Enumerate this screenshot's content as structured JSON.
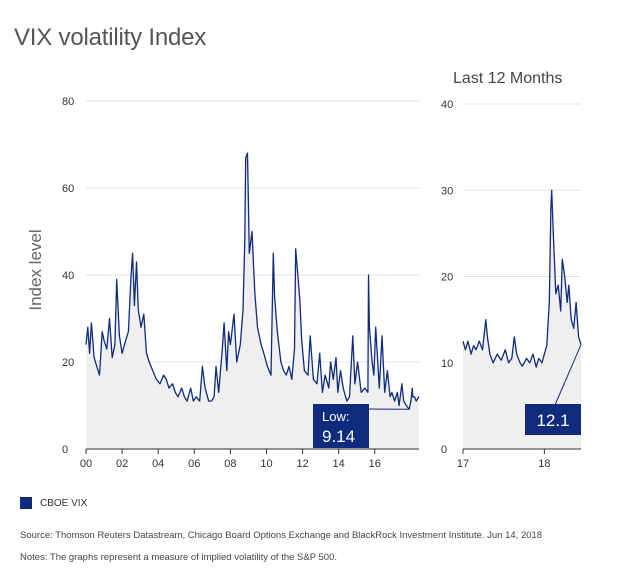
{
  "title": "VIX volatility Index",
  "subtitle": "Last 12 Months",
  "ylabel": "Index level",
  "colors": {
    "series": "#0f2b7d",
    "fill": "#efefef",
    "grid": "#e0e0e0",
    "axis": "#333333"
  },
  "legend": {
    "label": "CBOE VIX"
  },
  "source": "Source: Thomson Reuters Datastream, Chicago Board Options Exchange and BlackRock Investment Institute. Jun 14, 2018",
  "notes": "Notes: The graphs represent a measure of implied volatility of the S&P 500.",
  "chart_data": [
    {
      "type": "area",
      "series_name": "CBOE VIX",
      "xlim": [
        2000,
        2018.45
      ],
      "ylim": [
        0,
        80
      ],
      "yticks": [
        0,
        20,
        40,
        60,
        80
      ],
      "xticks": [
        {
          "value": 2000,
          "label": "00"
        },
        {
          "value": 2002,
          "label": "02"
        },
        {
          "value": 2004,
          "label": "04"
        },
        {
          "value": 2006,
          "label": "06"
        },
        {
          "value": 2008,
          "label": "08"
        },
        {
          "value": 2010,
          "label": "10"
        },
        {
          "value": 2012,
          "label": "12"
        },
        {
          "value": 2014,
          "label": "14"
        },
        {
          "value": 2016,
          "label": "16"
        }
      ],
      "points": [
        [
          2000.0,
          24
        ],
        [
          2000.1,
          28
        ],
        [
          2000.2,
          22
        ],
        [
          2000.3,
          29
        ],
        [
          2000.45,
          21
        ],
        [
          2000.6,
          19
        ],
        [
          2000.75,
          17
        ],
        [
          2000.9,
          27
        ],
        [
          2001.0,
          25
        ],
        [
          2001.15,
          23
        ],
        [
          2001.3,
          30
        ],
        [
          2001.45,
          21
        ],
        [
          2001.6,
          24
        ],
        [
          2001.7,
          39
        ],
        [
          2001.85,
          26
        ],
        [
          2002.0,
          22
        ],
        [
          2002.2,
          25
        ],
        [
          2002.35,
          27
        ],
        [
          2002.5,
          40
        ],
        [
          2002.58,
          45
        ],
        [
          2002.68,
          33
        ],
        [
          2002.8,
          43
        ],
        [
          2002.9,
          32
        ],
        [
          2003.05,
          28
        ],
        [
          2003.2,
          31
        ],
        [
          2003.35,
          22
        ],
        [
          2003.5,
          20
        ],
        [
          2003.7,
          18
        ],
        [
          2003.9,
          16
        ],
        [
          2004.1,
          15
        ],
        [
          2004.3,
          17
        ],
        [
          2004.45,
          16
        ],
        [
          2004.6,
          14
        ],
        [
          2004.8,
          15
        ],
        [
          2004.95,
          13
        ],
        [
          2005.1,
          12
        ],
        [
          2005.3,
          14
        ],
        [
          2005.45,
          12
        ],
        [
          2005.6,
          11
        ],
        [
          2005.8,
          14
        ],
        [
          2005.95,
          11
        ],
        [
          2006.1,
          12
        ],
        [
          2006.3,
          11
        ],
        [
          2006.45,
          19
        ],
        [
          2006.6,
          14
        ],
        [
          2006.8,
          11
        ],
        [
          2006.95,
          11
        ],
        [
          2007.1,
          12
        ],
        [
          2007.2,
          19
        ],
        [
          2007.35,
          13
        ],
        [
          2007.55,
          23
        ],
        [
          2007.65,
          29
        ],
        [
          2007.8,
          18
        ],
        [
          2007.9,
          27
        ],
        [
          2008.0,
          24
        ],
        [
          2008.2,
          31
        ],
        [
          2008.35,
          20
        ],
        [
          2008.55,
          24
        ],
        [
          2008.7,
          32
        ],
        [
          2008.8,
          48
        ],
        [
          2008.85,
          67
        ],
        [
          2008.95,
          68
        ],
        [
          2009.05,
          45
        ],
        [
          2009.2,
          50
        ],
        [
          2009.35,
          36
        ],
        [
          2009.5,
          28
        ],
        [
          2009.7,
          24
        ],
        [
          2009.85,
          22
        ],
        [
          2010.05,
          19
        ],
        [
          2010.25,
          17
        ],
        [
          2010.38,
          45
        ],
        [
          2010.45,
          35
        ],
        [
          2010.6,
          27
        ],
        [
          2010.8,
          20
        ],
        [
          2010.95,
          18
        ],
        [
          2011.1,
          17
        ],
        [
          2011.25,
          19
        ],
        [
          2011.4,
          16
        ],
        [
          2011.55,
          23
        ],
        [
          2011.62,
          46
        ],
        [
          2011.72,
          41
        ],
        [
          2011.85,
          34
        ],
        [
          2011.95,
          25
        ],
        [
          2012.1,
          18
        ],
        [
          2012.3,
          17
        ],
        [
          2012.42,
          26
        ],
        [
          2012.6,
          16
        ],
        [
          2012.8,
          15
        ],
        [
          2012.95,
          22
        ],
        [
          2013.1,
          13
        ],
        [
          2013.25,
          17
        ],
        [
          2013.45,
          14
        ],
        [
          2013.55,
          20
        ],
        [
          2013.7,
          16
        ],
        [
          2013.85,
          21
        ],
        [
          2013.95,
          13
        ],
        [
          2014.1,
          18
        ],
        [
          2014.25,
          14
        ],
        [
          2014.45,
          11
        ],
        [
          2014.6,
          12
        ],
        [
          2014.78,
          26
        ],
        [
          2014.9,
          15
        ],
        [
          2015.05,
          20
        ],
        [
          2015.25,
          13
        ],
        [
          2015.45,
          14
        ],
        [
          2015.62,
          13
        ],
        [
          2015.65,
          40
        ],
        [
          2015.7,
          28
        ],
        [
          2015.85,
          20
        ],
        [
          2015.95,
          17
        ],
        [
          2016.05,
          28
        ],
        [
          2016.25,
          14
        ],
        [
          2016.4,
          26
        ],
        [
          2016.55,
          13
        ],
        [
          2016.7,
          18
        ],
        [
          2016.85,
          12
        ],
        [
          2016.95,
          13
        ],
        [
          2017.1,
          11
        ],
        [
          2017.25,
          13
        ],
        [
          2017.35,
          10
        ],
        [
          2017.5,
          15
        ],
        [
          2017.6,
          11
        ],
        [
          2017.75,
          10
        ],
        [
          2017.9,
          9.14
        ],
        [
          2018.0,
          11
        ],
        [
          2018.08,
          14
        ],
        [
          2018.1,
          12
        ],
        [
          2018.2,
          12
        ],
        [
          2018.3,
          11
        ],
        [
          2018.45,
          12.1
        ]
      ],
      "annotation": {
        "label1": "Low:",
        "label2": "9.14",
        "x": 2017.9,
        "y": 9.14
      }
    },
    {
      "type": "area",
      "title": "Last 12 Months",
      "series_name": "CBOE VIX",
      "xlim": [
        2017.0,
        2018.45
      ],
      "ylim": [
        0,
        40
      ],
      "yticks": [
        0,
        10,
        20,
        30,
        40
      ],
      "xticks": [
        {
          "value": 2017,
          "label": "17"
        },
        {
          "value": 2018,
          "label": "18"
        }
      ],
      "points": [
        [
          2017.0,
          12.5
        ],
        [
          2017.03,
          11.5
        ],
        [
          2017.06,
          12.5
        ],
        [
          2017.1,
          11.0
        ],
        [
          2017.13,
          12.0
        ],
        [
          2017.16,
          11.5
        ],
        [
          2017.2,
          12.5
        ],
        [
          2017.24,
          11.5
        ],
        [
          2017.28,
          15.0
        ],
        [
          2017.3,
          13.0
        ],
        [
          2017.33,
          11.0
        ],
        [
          2017.37,
          10.0
        ],
        [
          2017.42,
          11.0
        ],
        [
          2017.47,
          10.3
        ],
        [
          2017.52,
          11.5
        ],
        [
          2017.56,
          10.0
        ],
        [
          2017.6,
          10.5
        ],
        [
          2017.63,
          13.0
        ],
        [
          2017.66,
          11.0
        ],
        [
          2017.7,
          10.0
        ],
        [
          2017.73,
          9.6
        ],
        [
          2017.78,
          10.5
        ],
        [
          2017.82,
          10.0
        ],
        [
          2017.86,
          11.0
        ],
        [
          2017.9,
          9.5
        ],
        [
          2017.93,
          10.5
        ],
        [
          2017.97,
          10.0
        ],
        [
          2018.0,
          11.0
        ],
        [
          2018.03,
          12.0
        ],
        [
          2018.06,
          17.0
        ],
        [
          2018.08,
          28.0
        ],
        [
          2018.09,
          30.0
        ],
        [
          2018.11,
          25.0
        ],
        [
          2018.14,
          18.0
        ],
        [
          2018.17,
          19.0
        ],
        [
          2018.2,
          16.0
        ],
        [
          2018.22,
          22.0
        ],
        [
          2018.25,
          20.0
        ],
        [
          2018.28,
          17.0
        ],
        [
          2018.3,
          19.0
        ],
        [
          2018.33,
          15.0
        ],
        [
          2018.36,
          14.0
        ],
        [
          2018.39,
          17.0
        ],
        [
          2018.42,
          13.0
        ],
        [
          2018.45,
          12.1
        ]
      ],
      "annotation": {
        "label": "12.1",
        "x": 2018.45,
        "y": 12.1
      }
    }
  ]
}
